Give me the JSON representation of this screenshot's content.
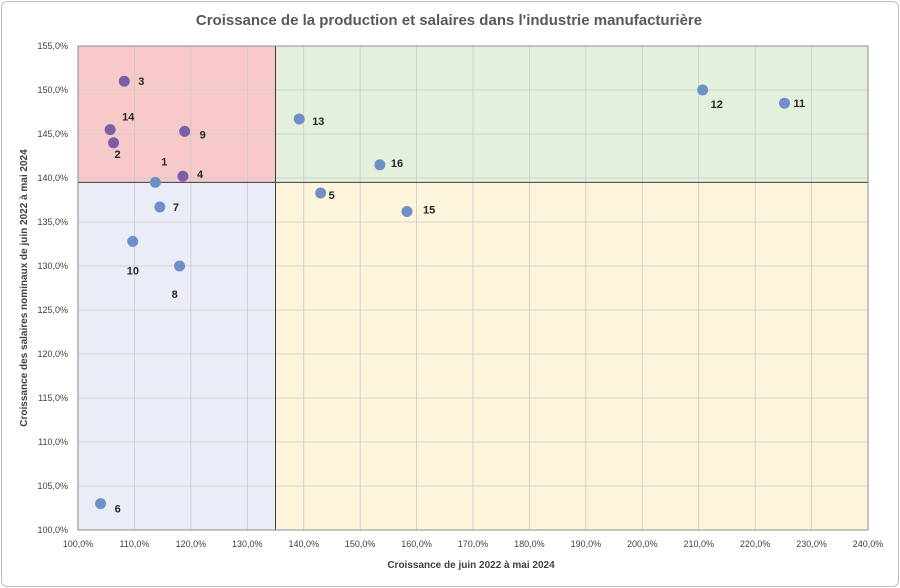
{
  "chart_data": {
    "type": "scatter",
    "title": "Croissance de la production et salaires dans l'industrie manufacturière",
    "xlabel": "Croissance de juin 2022 à mai 2024",
    "ylabel": "Croissance des salaires nominaux de juin 2022 à mai 2024",
    "xlim": [
      1.0,
      2.4
    ],
    "ylim": [
      1.0,
      1.55
    ],
    "x_ticks": [
      "100,0%",
      "110,0%",
      "120,0%",
      "130,0%",
      "140,0%",
      "150,0%",
      "160,0%",
      "170,0%",
      "180,0%",
      "190,0%",
      "200,0%",
      "210,0%",
      "220,0%",
      "230,0%",
      "240,0%"
    ],
    "y_ticks": [
      "100,0%",
      "105,0%",
      "110,0%",
      "115,0%",
      "120,0%",
      "125,0%",
      "130,0%",
      "135,0%",
      "140,0%",
      "145,0%",
      "150,0%",
      "155,0%"
    ],
    "grid": true,
    "quadrants": {
      "x_split": 1.35,
      "y_split": 1.395,
      "colors": {
        "top_left": "#f8c9c9",
        "top_right": "#e3f0dc",
        "bottom_left": "#eaedf8",
        "bottom_right": "#fdf4dc"
      }
    },
    "series": [
      {
        "marker_color": "#6f8fc8",
        "marker_color_top_left": "#7a5ea8",
        "points": [
          {
            "label": "1",
            "x": 1.137,
            "y": 1.395
          },
          {
            "label": "2",
            "x": 1.063,
            "y": 1.44
          },
          {
            "label": "3",
            "x": 1.082,
            "y": 1.51
          },
          {
            "label": "4",
            "x": 1.186,
            "y": 1.402
          },
          {
            "label": "5",
            "x": 1.43,
            "y": 1.383
          },
          {
            "label": "6",
            "x": 1.04,
            "y": 1.03
          },
          {
            "label": "7",
            "x": 1.145,
            "y": 1.367
          },
          {
            "label": "8",
            "x": 1.18,
            "y": 1.3
          },
          {
            "label": "9",
            "x": 1.189,
            "y": 1.453
          },
          {
            "label": "10",
            "x": 1.097,
            "y": 1.328
          },
          {
            "label": "11",
            "x": 2.252,
            "y": 1.485
          },
          {
            "label": "12",
            "x": 2.107,
            "y": 1.5
          },
          {
            "label": "13",
            "x": 1.392,
            "y": 1.467
          },
          {
            "label": "14",
            "x": 1.057,
            "y": 1.455
          },
          {
            "label": "15",
            "x": 1.583,
            "y": 1.362
          },
          {
            "label": "16",
            "x": 1.535,
            "y": 1.415
          }
        ]
      }
    ]
  }
}
